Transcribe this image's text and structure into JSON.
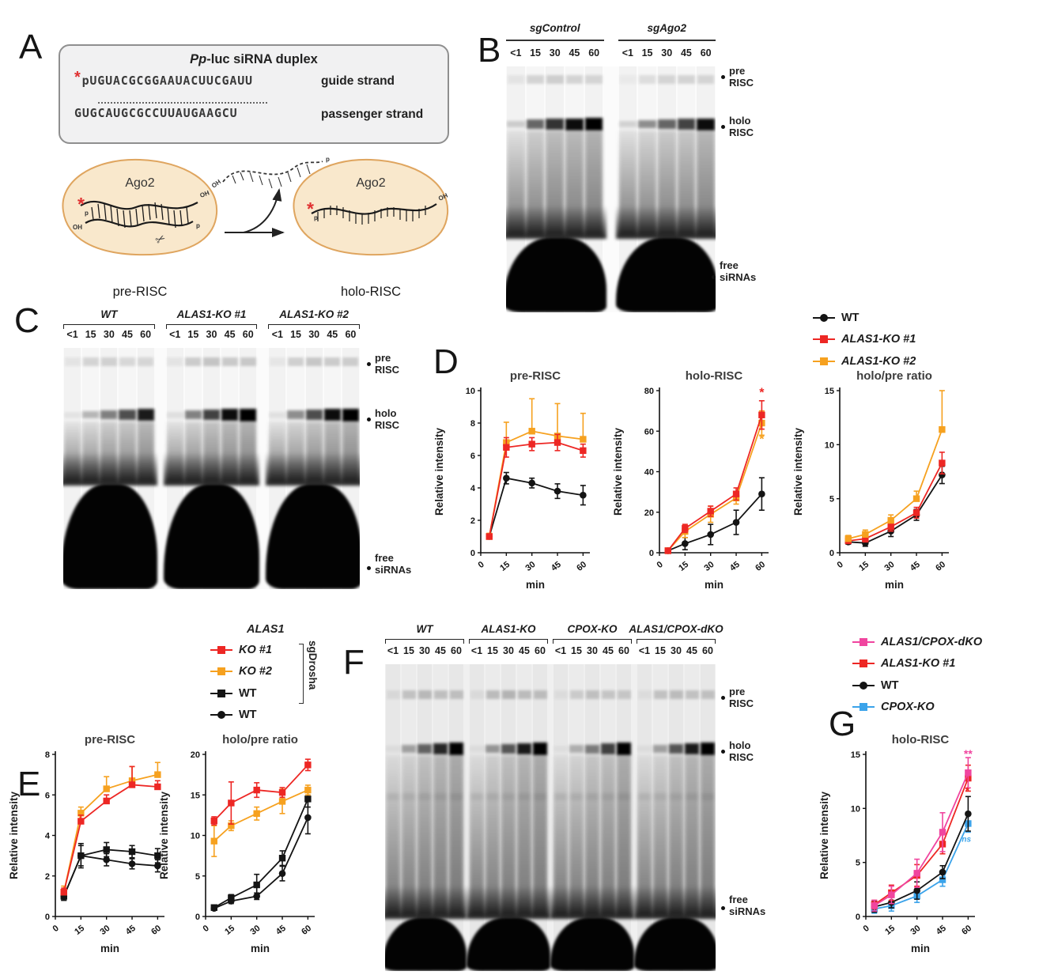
{
  "panels": {
    "A": "A",
    "B": "B",
    "C": "C",
    "D": "D",
    "E": "E",
    "F": "F",
    "G": "G"
  },
  "colors": {
    "red": "#ed2724",
    "orange": "#f6a11f",
    "pink": "#f0459f",
    "blue": "#3ba3ea",
    "black": "#141414"
  },
  "panelA": {
    "box_title_italic": "Pp",
    "box_title_rest": "-luc siRNA duplex",
    "asterisk": "*",
    "guide_seq": "pUGUACGCGGAAUACUUCGAUU",
    "guide_label": "guide strand",
    "passenger_seq": "GUGCAUGCGCCUUAUGAAGCU",
    "passenger_label": "passenger strand",
    "ago2": "Ago2",
    "pre_risc_label": "pre-RISC",
    "holo_risc_label": "holo-RISC",
    "oh": "OH",
    "p": "p"
  },
  "markers": {
    "pre": [
      "pre",
      "RISC"
    ],
    "holo": [
      "holo",
      "RISC"
    ],
    "free": [
      "free",
      "siRNAs"
    ]
  },
  "gels": {
    "B": {
      "lanes": [
        "<1",
        "15",
        "30",
        "45",
        "60"
      ],
      "groups": [
        {
          "label": "sgControl",
          "pre": [
            0.12,
            0.3,
            0.33,
            0.3,
            0.28
          ],
          "holo": [
            0.15,
            0.55,
            0.75,
            0.9,
            1.0
          ]
        },
        {
          "label": "sgAgo2",
          "pre": [
            0.08,
            0.22,
            0.28,
            0.3,
            0.28
          ],
          "holo": [
            0.12,
            0.4,
            0.55,
            0.7,
            0.9
          ]
        }
      ]
    },
    "C": {
      "lanes": [
        "<1",
        "15",
        "30",
        "45",
        "60"
      ],
      "groups": [
        {
          "label": "WT",
          "pre": [
            0.12,
            0.3,
            0.3,
            0.28,
            0.25
          ],
          "holo": [
            0.06,
            0.25,
            0.45,
            0.65,
            0.85
          ]
        },
        {
          "label": "ALAS1-KO #1",
          "pre": [
            0.12,
            0.38,
            0.42,
            0.4,
            0.38
          ],
          "holo": [
            0.08,
            0.45,
            0.7,
            0.9,
            1.0
          ]
        },
        {
          "label": "ALAS1-KO #2",
          "pre": [
            0.1,
            0.35,
            0.4,
            0.38,
            0.35
          ],
          "holo": [
            0.07,
            0.4,
            0.65,
            0.9,
            1.0
          ]
        }
      ]
    },
    "F": {
      "lanes": [
        "<1",
        "15",
        "30",
        "45",
        "60"
      ],
      "groups": [
        {
          "label": "WT",
          "pre": [
            0.15,
            0.4,
            0.45,
            0.42,
            0.4
          ],
          "holo": [
            0.05,
            0.3,
            0.55,
            0.8,
            1.0
          ]
        },
        {
          "label": "ALAS1-KO",
          "pre": [
            0.12,
            0.45,
            0.5,
            0.45,
            0.42
          ],
          "holo": [
            0.05,
            0.35,
            0.6,
            0.85,
            1.0
          ]
        },
        {
          "label": "CPOX-KO",
          "pre": [
            0.1,
            0.3,
            0.38,
            0.36,
            0.33
          ],
          "holo": [
            0.04,
            0.25,
            0.45,
            0.7,
            0.95
          ]
        },
        {
          "label": "ALAS1/CPOX-dKO",
          "pre": [
            0.1,
            0.4,
            0.42,
            0.4,
            0.38
          ],
          "holo": [
            0.05,
            0.3,
            0.6,
            0.85,
            1.0
          ]
        }
      ]
    }
  },
  "legends": {
    "D": {
      "rows": [
        {
          "marker": "circle",
          "color": "black",
          "label": "WT",
          "italic": false
        },
        {
          "marker": "square",
          "color": "red",
          "label": "ALAS1-KO #1",
          "italic": true
        },
        {
          "marker": "square",
          "color": "orange",
          "label": "ALAS1-KO #2",
          "italic": true
        }
      ]
    },
    "E": {
      "header": "ALAS1",
      "bracket_label": "sgDrosha",
      "rows": [
        {
          "marker": "square",
          "color": "red",
          "label": "KO #1",
          "italic": true
        },
        {
          "marker": "square",
          "color": "orange",
          "label": "KO #2",
          "italic": true
        },
        {
          "marker": "square",
          "color": "black",
          "label": "WT",
          "italic": false
        },
        {
          "marker": "circle",
          "color": "black",
          "label": "WT",
          "italic": false
        }
      ]
    },
    "G": {
      "rows": [
        {
          "marker": "square",
          "color": "pink",
          "label": "ALAS1/CPOX-dKO",
          "italic": true
        },
        {
          "marker": "square",
          "color": "red",
          "label": "ALAS1-KO #1",
          "italic": true
        },
        {
          "marker": "circle",
          "color": "black",
          "label": "WT",
          "italic": false
        },
        {
          "marker": "square",
          "color": "blue",
          "label": "CPOX-KO",
          "italic": true
        }
      ]
    }
  },
  "chart_data": [
    {
      "id": "D-pre",
      "type": "line",
      "title": "pre-RISC",
      "ylabel": "Relative intensity",
      "xlabel": "min",
      "ylim": [
        0,
        10
      ],
      "yticks": [
        0,
        2,
        4,
        6,
        8,
        10
      ],
      "xticks": [
        0,
        15,
        30,
        45,
        60
      ],
      "x": [
        5,
        15,
        30,
        45,
        60
      ],
      "series": [
        {
          "name": "WT",
          "color": "black",
          "marker": "circle",
          "values": [
            1,
            4.6,
            4.3,
            3.8,
            3.55
          ],
          "err": [
            0.15,
            0.35,
            0.3,
            0.45,
            0.6
          ],
          "dir": "both"
        },
        {
          "name": "ALAS1-KO #2",
          "color": "orange",
          "marker": "square",
          "values": [
            1,
            6.8,
            7.5,
            7.2,
            7.0
          ],
          "err": [
            0.2,
            1.25,
            2.0,
            2.0,
            1.6
          ],
          "dir": "up"
        },
        {
          "name": "ALAS1-KO #1",
          "color": "red",
          "marker": "square",
          "values": [
            1,
            6.5,
            6.7,
            6.8,
            6.3
          ],
          "err": [
            0.15,
            0.6,
            0.4,
            0.5,
            0.4
          ],
          "dir": "both"
        }
      ],
      "annotations": []
    },
    {
      "id": "D-holo",
      "type": "line",
      "title": "holo-RISC",
      "ylabel": "Relative intensity",
      "xlabel": "min",
      "ylim": [
        0,
        80
      ],
      "yticks": [
        0,
        20,
        40,
        60,
        80
      ],
      "xticks": [
        0,
        15,
        30,
        45,
        60
      ],
      "x": [
        5,
        15,
        30,
        45,
        60
      ],
      "series": [
        {
          "name": "WT",
          "color": "black",
          "marker": "circle",
          "values": [
            1,
            4.5,
            9,
            15,
            29
          ],
          "err": [
            0.5,
            3,
            5,
            6,
            8
          ],
          "dir": "both"
        },
        {
          "name": "ALAS1-KO #2",
          "color": "orange",
          "marker": "square",
          "values": [
            1,
            10.5,
            19,
            27,
            64
          ],
          "err": [
            0.5,
            3,
            4,
            3,
            6
          ],
          "dir": "both"
        },
        {
          "name": "ALAS1-KO #1",
          "color": "red",
          "marker": "square",
          "values": [
            1,
            12,
            20.5,
            29,
            68
          ],
          "err": [
            0.5,
            2,
            2.5,
            3,
            7
          ],
          "dir": "both"
        }
      ],
      "annotations": [
        {
          "text": "*",
          "x": 60,
          "y": 77,
          "color": "red",
          "size": 16
        },
        {
          "text": "*",
          "x": 60,
          "y": 54,
          "color": "orange",
          "size": 16
        }
      ]
    },
    {
      "id": "D-ratio",
      "type": "line",
      "title": "holo/pre ratio",
      "ylabel": "Relative intensity",
      "xlabel": "min",
      "ylim": [
        0,
        15
      ],
      "yticks": [
        0,
        5,
        10,
        15
      ],
      "xticks": [
        0,
        15,
        30,
        45,
        60
      ],
      "x": [
        5,
        15,
        30,
        45,
        60
      ],
      "series": [
        {
          "name": "WT",
          "color": "black",
          "marker": "circle",
          "values": [
            1,
            0.9,
            2.0,
            3.5,
            7.2
          ],
          "err": [
            0.2,
            0.3,
            0.5,
            0.5,
            0.8
          ],
          "dir": "both"
        },
        {
          "name": "ALAS1-KO #1",
          "color": "red",
          "marker": "square",
          "values": [
            1.1,
            1.3,
            2.4,
            3.7,
            8.3
          ],
          "err": [
            0.2,
            0.3,
            0.4,
            0.5,
            1.0
          ],
          "dir": "both"
        },
        {
          "name": "ALAS1-KO #2",
          "color": "orange",
          "marker": "square",
          "values": [
            1.3,
            1.7,
            3.0,
            5.0,
            11.4
          ],
          "err": [
            0.3,
            0.4,
            0.5,
            0.7,
            3.6
          ],
          "dir": "up"
        }
      ],
      "annotations": []
    },
    {
      "id": "E-pre",
      "type": "line",
      "title": "pre-RISC",
      "ylabel": "Relative intensity",
      "xlabel": "min",
      "ylim": [
        0,
        8
      ],
      "yticks": [
        0,
        2,
        4,
        6,
        8
      ],
      "xticks": [
        0,
        15,
        30,
        45,
        60
      ],
      "x": [
        5,
        15,
        30,
        45,
        60
      ],
      "series": [
        {
          "name": "WT",
          "color": "black",
          "marker": "circle",
          "values": [
            1.0,
            3.0,
            2.8,
            2.6,
            2.5
          ],
          "err": [
            0.2,
            0.5,
            0.3,
            0.25,
            0.3
          ],
          "dir": "both"
        },
        {
          "name": "WT sgDrosha",
          "color": "black",
          "marker": "square",
          "values": [
            1.0,
            3.0,
            3.3,
            3.2,
            3.0
          ],
          "err": [
            0.2,
            0.6,
            0.35,
            0.3,
            0.35
          ],
          "dir": "both"
        },
        {
          "name": "ALAS1 KO #2 sgDrosha",
          "color": "orange",
          "marker": "square",
          "values": [
            1.2,
            5.1,
            6.3,
            6.7,
            7.0
          ],
          "err": [
            0.3,
            0.3,
            0.6,
            0.7,
            0.6
          ],
          "dir": "up"
        },
        {
          "name": "ALAS1 KO #1 sgDrosha",
          "color": "red",
          "marker": "square",
          "values": [
            1.2,
            4.7,
            5.7,
            6.5,
            6.4
          ],
          "err": [
            0.2,
            0.3,
            0.3,
            0.9,
            0.3
          ],
          "dir": "up"
        }
      ],
      "annotations": []
    },
    {
      "id": "E-ratio",
      "type": "line",
      "title": "holo/pre ratio",
      "ylabel": "Relative intensity",
      "xlabel": "min",
      "ylim": [
        0,
        20
      ],
      "yticks": [
        0,
        5,
        10,
        15,
        20
      ],
      "xticks": [
        0,
        15,
        30,
        45,
        60
      ],
      "x": [
        5,
        15,
        30,
        45,
        60
      ],
      "series": [
        {
          "name": "WT",
          "color": "black",
          "marker": "circle",
          "values": [
            1.0,
            1.9,
            2.5,
            5.3,
            12.2
          ],
          "err": [
            0.2,
            0.3,
            0.4,
            0.9,
            2.0
          ],
          "dir": "both"
        },
        {
          "name": "WT sgDrosha",
          "color": "black",
          "marker": "square",
          "values": [
            1.1,
            2.3,
            3.9,
            7.2,
            14.5
          ],
          "err": [
            0.2,
            0.4,
            1.3,
            0.9,
            1.0
          ],
          "dir": "both"
        },
        {
          "name": "ALAS1 KO #2 sgDrosha",
          "color": "orange",
          "marker": "square",
          "values": [
            9.3,
            11.2,
            12.7,
            14.2,
            15.6
          ],
          "err": [
            1.9,
            0.6,
            0.8,
            1.5,
            0.6
          ],
          "dir": "both"
        },
        {
          "name": "ALAS1 KO #1 sgDrosha",
          "color": "red",
          "marker": "square",
          "values": [
            11.8,
            14.0,
            15.6,
            15.3,
            18.7
          ],
          "err": [
            0.5,
            2.6,
            0.9,
            0.6,
            0.7
          ],
          "dir": "both"
        }
      ],
      "annotations": []
    },
    {
      "id": "G-holo",
      "type": "line",
      "title": "holo-RISC",
      "ylabel": "Relative intensity",
      "xlabel": "min",
      "ylim": [
        0,
        15
      ],
      "yticks": [
        0,
        5,
        10,
        15
      ],
      "xticks": [
        0,
        15,
        30,
        45,
        60
      ],
      "x": [
        5,
        15,
        30,
        45,
        60
      ],
      "series": [
        {
          "name": "CPOX-KO",
          "color": "blue",
          "marker": "square",
          "values": [
            0.7,
            1.0,
            1.9,
            3.4,
            8.6
          ],
          "err": [
            0.4,
            0.5,
            0.6,
            0.6,
            0.8
          ],
          "dir": "both"
        },
        {
          "name": "WT",
          "color": "black",
          "marker": "circle",
          "values": [
            0.9,
            1.3,
            2.4,
            4.1,
            9.5
          ],
          "err": [
            0.5,
            0.5,
            0.8,
            0.6,
            1.6
          ],
          "dir": "both"
        },
        {
          "name": "ALAS1-KO #1",
          "color": "red",
          "marker": "square",
          "values": [
            1.1,
            2.2,
            3.8,
            6.7,
            12.8
          ],
          "err": [
            0.4,
            0.7,
            1.0,
            0.9,
            1.2
          ],
          "dir": "both"
        },
        {
          "name": "ALAS1/CPOX-dKO",
          "color": "pink",
          "marker": "square",
          "values": [
            1.0,
            2.0,
            4.0,
            7.8,
            13.3
          ],
          "err": [
            0.5,
            0.8,
            1.3,
            1.8,
            1.4
          ],
          "dir": "both"
        }
      ],
      "annotations": [
        {
          "text": "**",
          "x": 60,
          "y": 14.7,
          "color": "pink",
          "size": 14
        },
        {
          "text": "*",
          "x": 59.5,
          "y": 11.3,
          "color": "red",
          "size": 13
        },
        {
          "text": "ns",
          "x": 59,
          "y": 6.9,
          "color": "blue",
          "size": 10,
          "italic": true
        }
      ]
    }
  ]
}
